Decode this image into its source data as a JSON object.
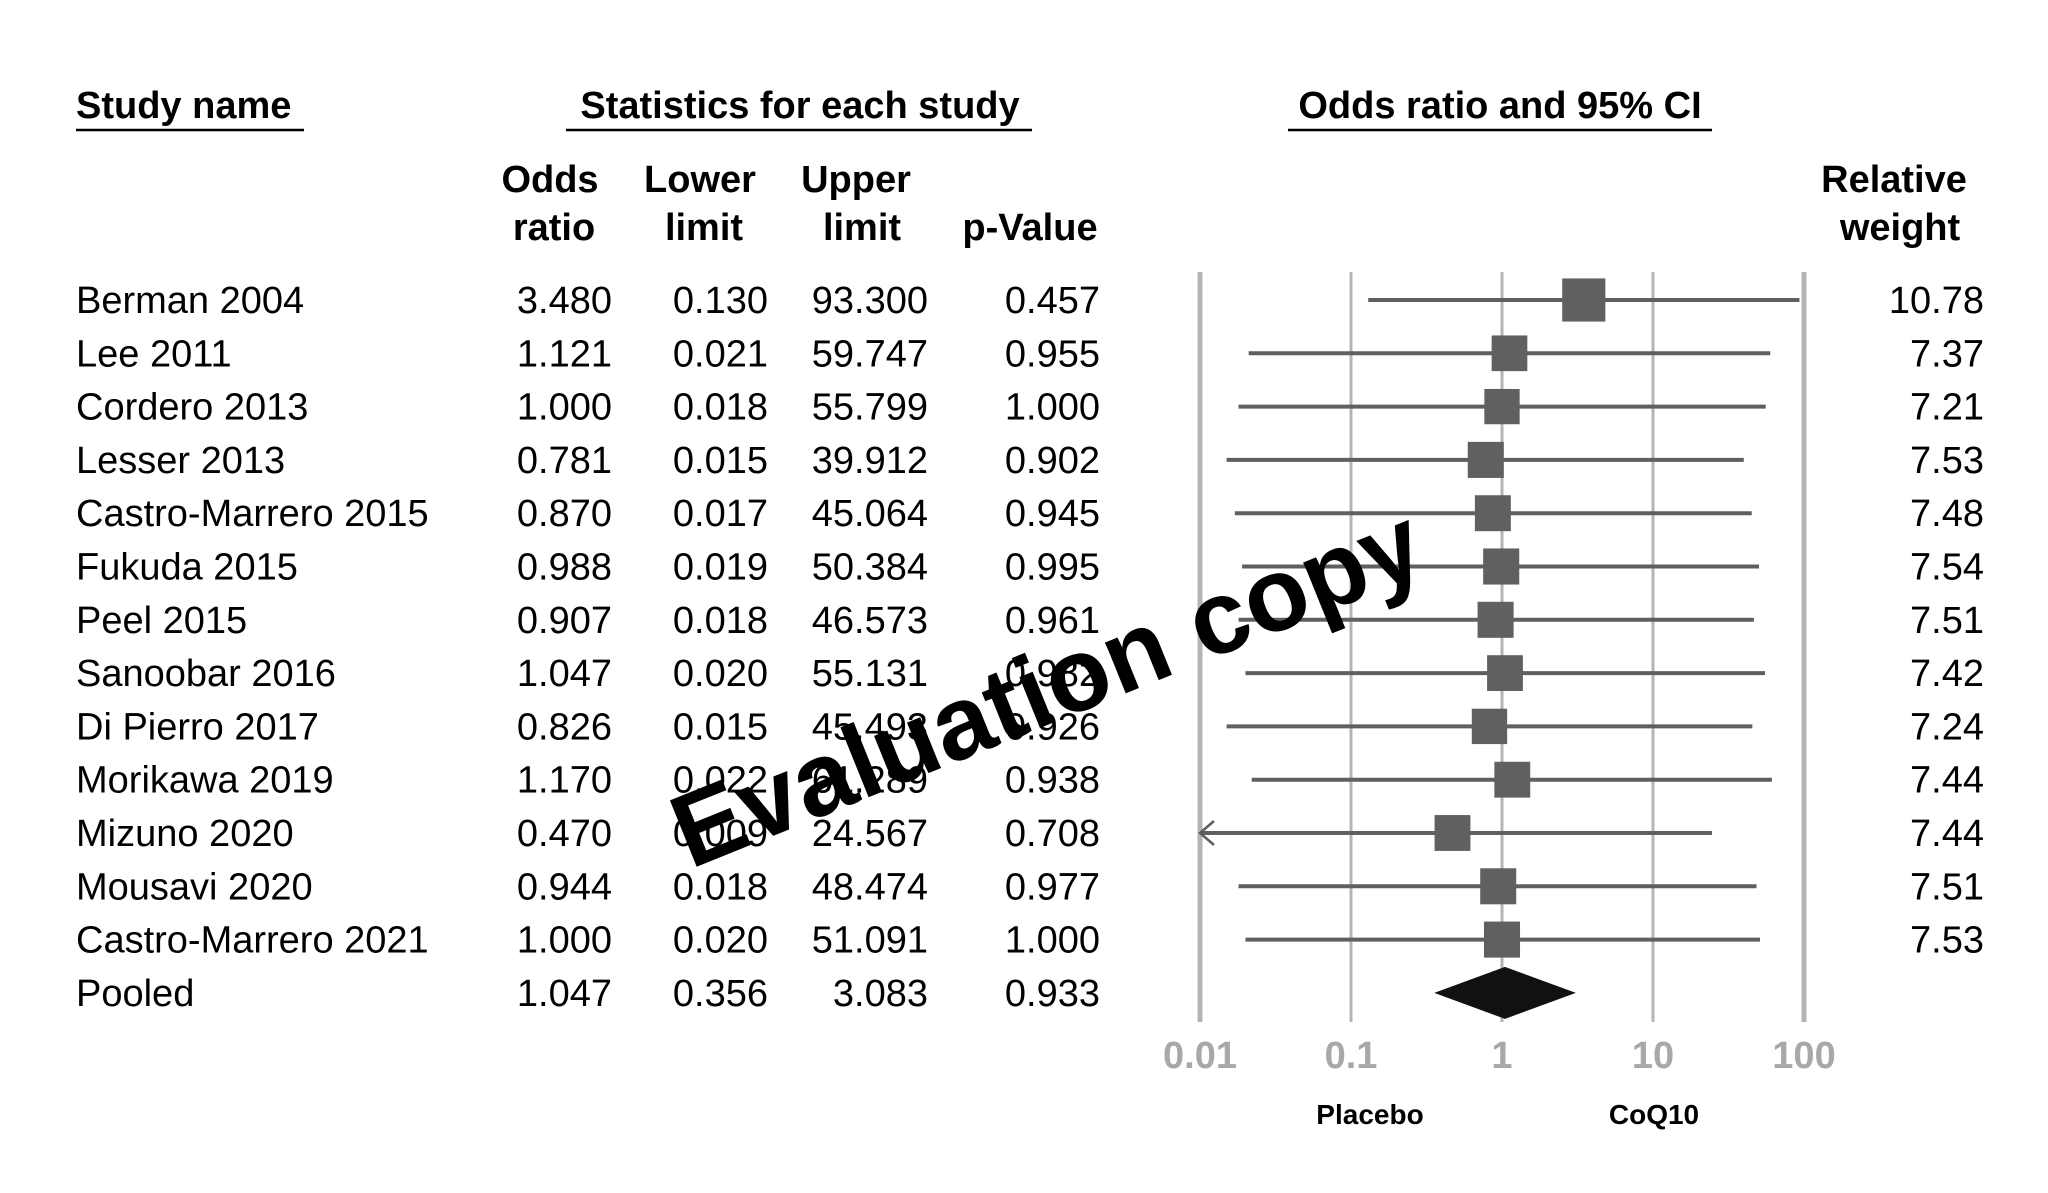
{
  "headers": {
    "study_name": "Study name",
    "statistics": "Statistics for each study",
    "plot": "Odds ratio and 95% CI",
    "or_line1": "Odds",
    "or_line2": "ratio",
    "lower_line1": "Lower",
    "lower_line2": "limit",
    "upper_line1": "Upper",
    "upper_line2": "limit",
    "p_value": "p-Value",
    "weight_line1": "Relative",
    "weight_line2": "weight"
  },
  "rows": [
    {
      "study": "Berman 2004",
      "or": "3.480",
      "lower": "0.130",
      "upper": "93.300",
      "p": "0.457",
      "weight": "10.78"
    },
    {
      "study": "Lee 2011",
      "or": "1.121",
      "lower": "0.021",
      "upper": "59.747",
      "p": "0.955",
      "weight": "7.37"
    },
    {
      "study": "Cordero 2013",
      "or": "1.000",
      "lower": "0.018",
      "upper": "55.799",
      "p": "1.000",
      "weight": "7.21"
    },
    {
      "study": "Lesser 2013",
      "or": "0.781",
      "lower": "0.015",
      "upper": "39.912",
      "p": "0.902",
      "weight": "7.53"
    },
    {
      "study": "Castro-Marrero 2015",
      "or": "0.870",
      "lower": "0.017",
      "upper": "45.064",
      "p": "0.945",
      "weight": "7.48"
    },
    {
      "study": "Fukuda 2015",
      "or": "0.988",
      "lower": "0.019",
      "upper": "50.384",
      "p": "0.995",
      "weight": "7.54"
    },
    {
      "study": "Peel 2015",
      "or": "0.907",
      "lower": "0.018",
      "upper": "46.573",
      "p": "0.961",
      "weight": "7.51"
    },
    {
      "study": "Sanoobar 2016",
      "or": "1.047",
      "lower": "0.020",
      "upper": "55.131",
      "p": "0.982",
      "weight": "7.42"
    },
    {
      "study": "Di Pierro 2017",
      "or": "0.826",
      "lower": "0.015",
      "upper": "45.493",
      "p": "0.926",
      "weight": "7.24"
    },
    {
      "study": "Morikawa 2019",
      "or": "1.170",
      "lower": "0.022",
      "upper": "61.289",
      "p": "0.938",
      "weight": "7.44"
    },
    {
      "study": "Mizuno 2020",
      "or": "0.470",
      "lower": "0.009",
      "upper": "24.567",
      "p": "0.708",
      "weight": "7.44"
    },
    {
      "study": "Mousavi 2020",
      "or": "0.944",
      "lower": "0.018",
      "upper": "48.474",
      "p": "0.977",
      "weight": "7.51"
    },
    {
      "study": "Castro-Marrero 2021",
      "or": "1.000",
      "lower": "0.020",
      "upper": "51.091",
      "p": "1.000",
      "weight": "7.53"
    }
  ],
  "pooled": {
    "study": "Pooled",
    "or": "1.047",
    "lower": "0.356",
    "upper": "3.083",
    "p": "0.933"
  },
  "axis": {
    "ticks": [
      "0.01",
      "0.1",
      "1",
      "10",
      "100"
    ],
    "favors_left": "Placebo",
    "favors_right": "CoQ10"
  },
  "watermark": "Evaluation copy",
  "colors": {
    "marker": "#606060",
    "line": "#5f5f5f",
    "grid": "#b4b4b4",
    "tick_text": "#a8a8a8",
    "diamond": "#111111"
  },
  "chart_data": {
    "type": "forest",
    "title": "Odds ratio and 95% CI",
    "scale": "log10",
    "xlim": [
      0.01,
      100
    ],
    "x_ticks": [
      0.01,
      0.1,
      1,
      10,
      100
    ],
    "xlabel_left": "Placebo",
    "xlabel_right": "CoQ10",
    "studies": [
      {
        "name": "Berman 2004",
        "or": 3.48,
        "lower": 0.13,
        "upper": 93.3,
        "weight": 10.78
      },
      {
        "name": "Lee 2011",
        "or": 1.121,
        "lower": 0.021,
        "upper": 59.747,
        "weight": 7.37
      },
      {
        "name": "Cordero 2013",
        "or": 1.0,
        "lower": 0.018,
        "upper": 55.799,
        "weight": 7.21
      },
      {
        "name": "Lesser 2013",
        "or": 0.781,
        "lower": 0.015,
        "upper": 39.912,
        "weight": 7.53
      },
      {
        "name": "Castro-Marrero 2015",
        "or": 0.87,
        "lower": 0.017,
        "upper": 45.064,
        "weight": 7.48
      },
      {
        "name": "Fukuda 2015",
        "or": 0.988,
        "lower": 0.019,
        "upper": 50.384,
        "weight": 7.54
      },
      {
        "name": "Peel 2015",
        "or": 0.907,
        "lower": 0.018,
        "upper": 46.573,
        "weight": 7.51
      },
      {
        "name": "Sanoobar 2016",
        "or": 1.047,
        "lower": 0.02,
        "upper": 55.131,
        "weight": 7.42
      },
      {
        "name": "Di Pierro 2017",
        "or": 0.826,
        "lower": 0.015,
        "upper": 45.493,
        "weight": 7.24
      },
      {
        "name": "Morikawa 2019",
        "or": 1.17,
        "lower": 0.022,
        "upper": 61.289,
        "weight": 7.44
      },
      {
        "name": "Mizuno 2020",
        "or": 0.47,
        "lower": 0.009,
        "upper": 24.567,
        "weight": 7.44
      },
      {
        "name": "Mousavi 2020",
        "or": 0.944,
        "lower": 0.018,
        "upper": 48.474,
        "weight": 7.51
      },
      {
        "name": "Castro-Marrero 2021",
        "or": 1.0,
        "lower": 0.02,
        "upper": 51.091,
        "weight": 7.53
      }
    ],
    "pooled": {
      "or": 1.047,
      "lower": 0.356,
      "upper": 3.083
    }
  }
}
